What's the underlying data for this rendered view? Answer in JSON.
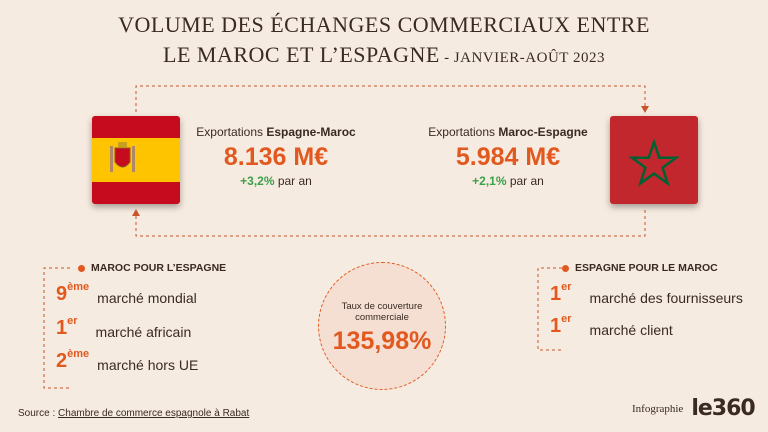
{
  "title": {
    "line1": "VOLUME DES ÉCHANGES COMMERCIAUX ENTRE",
    "line2": "LE MAROC ET L’ESPAGNE",
    "line2_sub": " - JANVIER-AOÛT 2023"
  },
  "left_export": {
    "label_prefix": "Exportations ",
    "label_bold": "Espagne-Maroc",
    "value": "8.136 M€",
    "growth": "+3,2%",
    "growth_suffix": " par an",
    "flag_icon": "spain-flag-icon"
  },
  "right_export": {
    "label_prefix": "Exportations ",
    "label_bold": "Maroc-Espagne",
    "value": "5.984 M€",
    "growth": "+2,1%",
    "growth_suffix": " par an",
    "flag_icon": "morocco-flag-icon"
  },
  "morocco_for_spain": {
    "title": "MAROC POUR L’ESPAGNE",
    "items": [
      {
        "rank": "9",
        "sup": "ème",
        "text": "marché mondial"
      },
      {
        "rank": "1",
        "sup": "er",
        "text": "marché africain"
      },
      {
        "rank": "2",
        "sup": "ème",
        "text": "marché hors UE"
      }
    ]
  },
  "spain_for_morocco": {
    "title": "ESPAGNE POUR LE MAROC",
    "items": [
      {
        "rank": "1",
        "sup": "er",
        "text": "marché des fournisseurs"
      },
      {
        "rank": "1",
        "sup": "er",
        "text": "marché client"
      }
    ]
  },
  "coverage": {
    "label": "Taux de couverture commerciale",
    "value": "135,98%"
  },
  "footer": {
    "source_prefix": "Source : ",
    "source_name": "Chambre de commerce espagnole à Rabat",
    "brand_label": "Infographie",
    "brand_logo": "le360"
  },
  "colors": {
    "background": "#f6ebe0",
    "accent": "#e2591f",
    "positive": "#3aa04a",
    "morocco_red": "#c1272d",
    "morocco_green": "#006233",
    "spain_red": "#c60b1e",
    "spain_yellow": "#ffc400"
  }
}
